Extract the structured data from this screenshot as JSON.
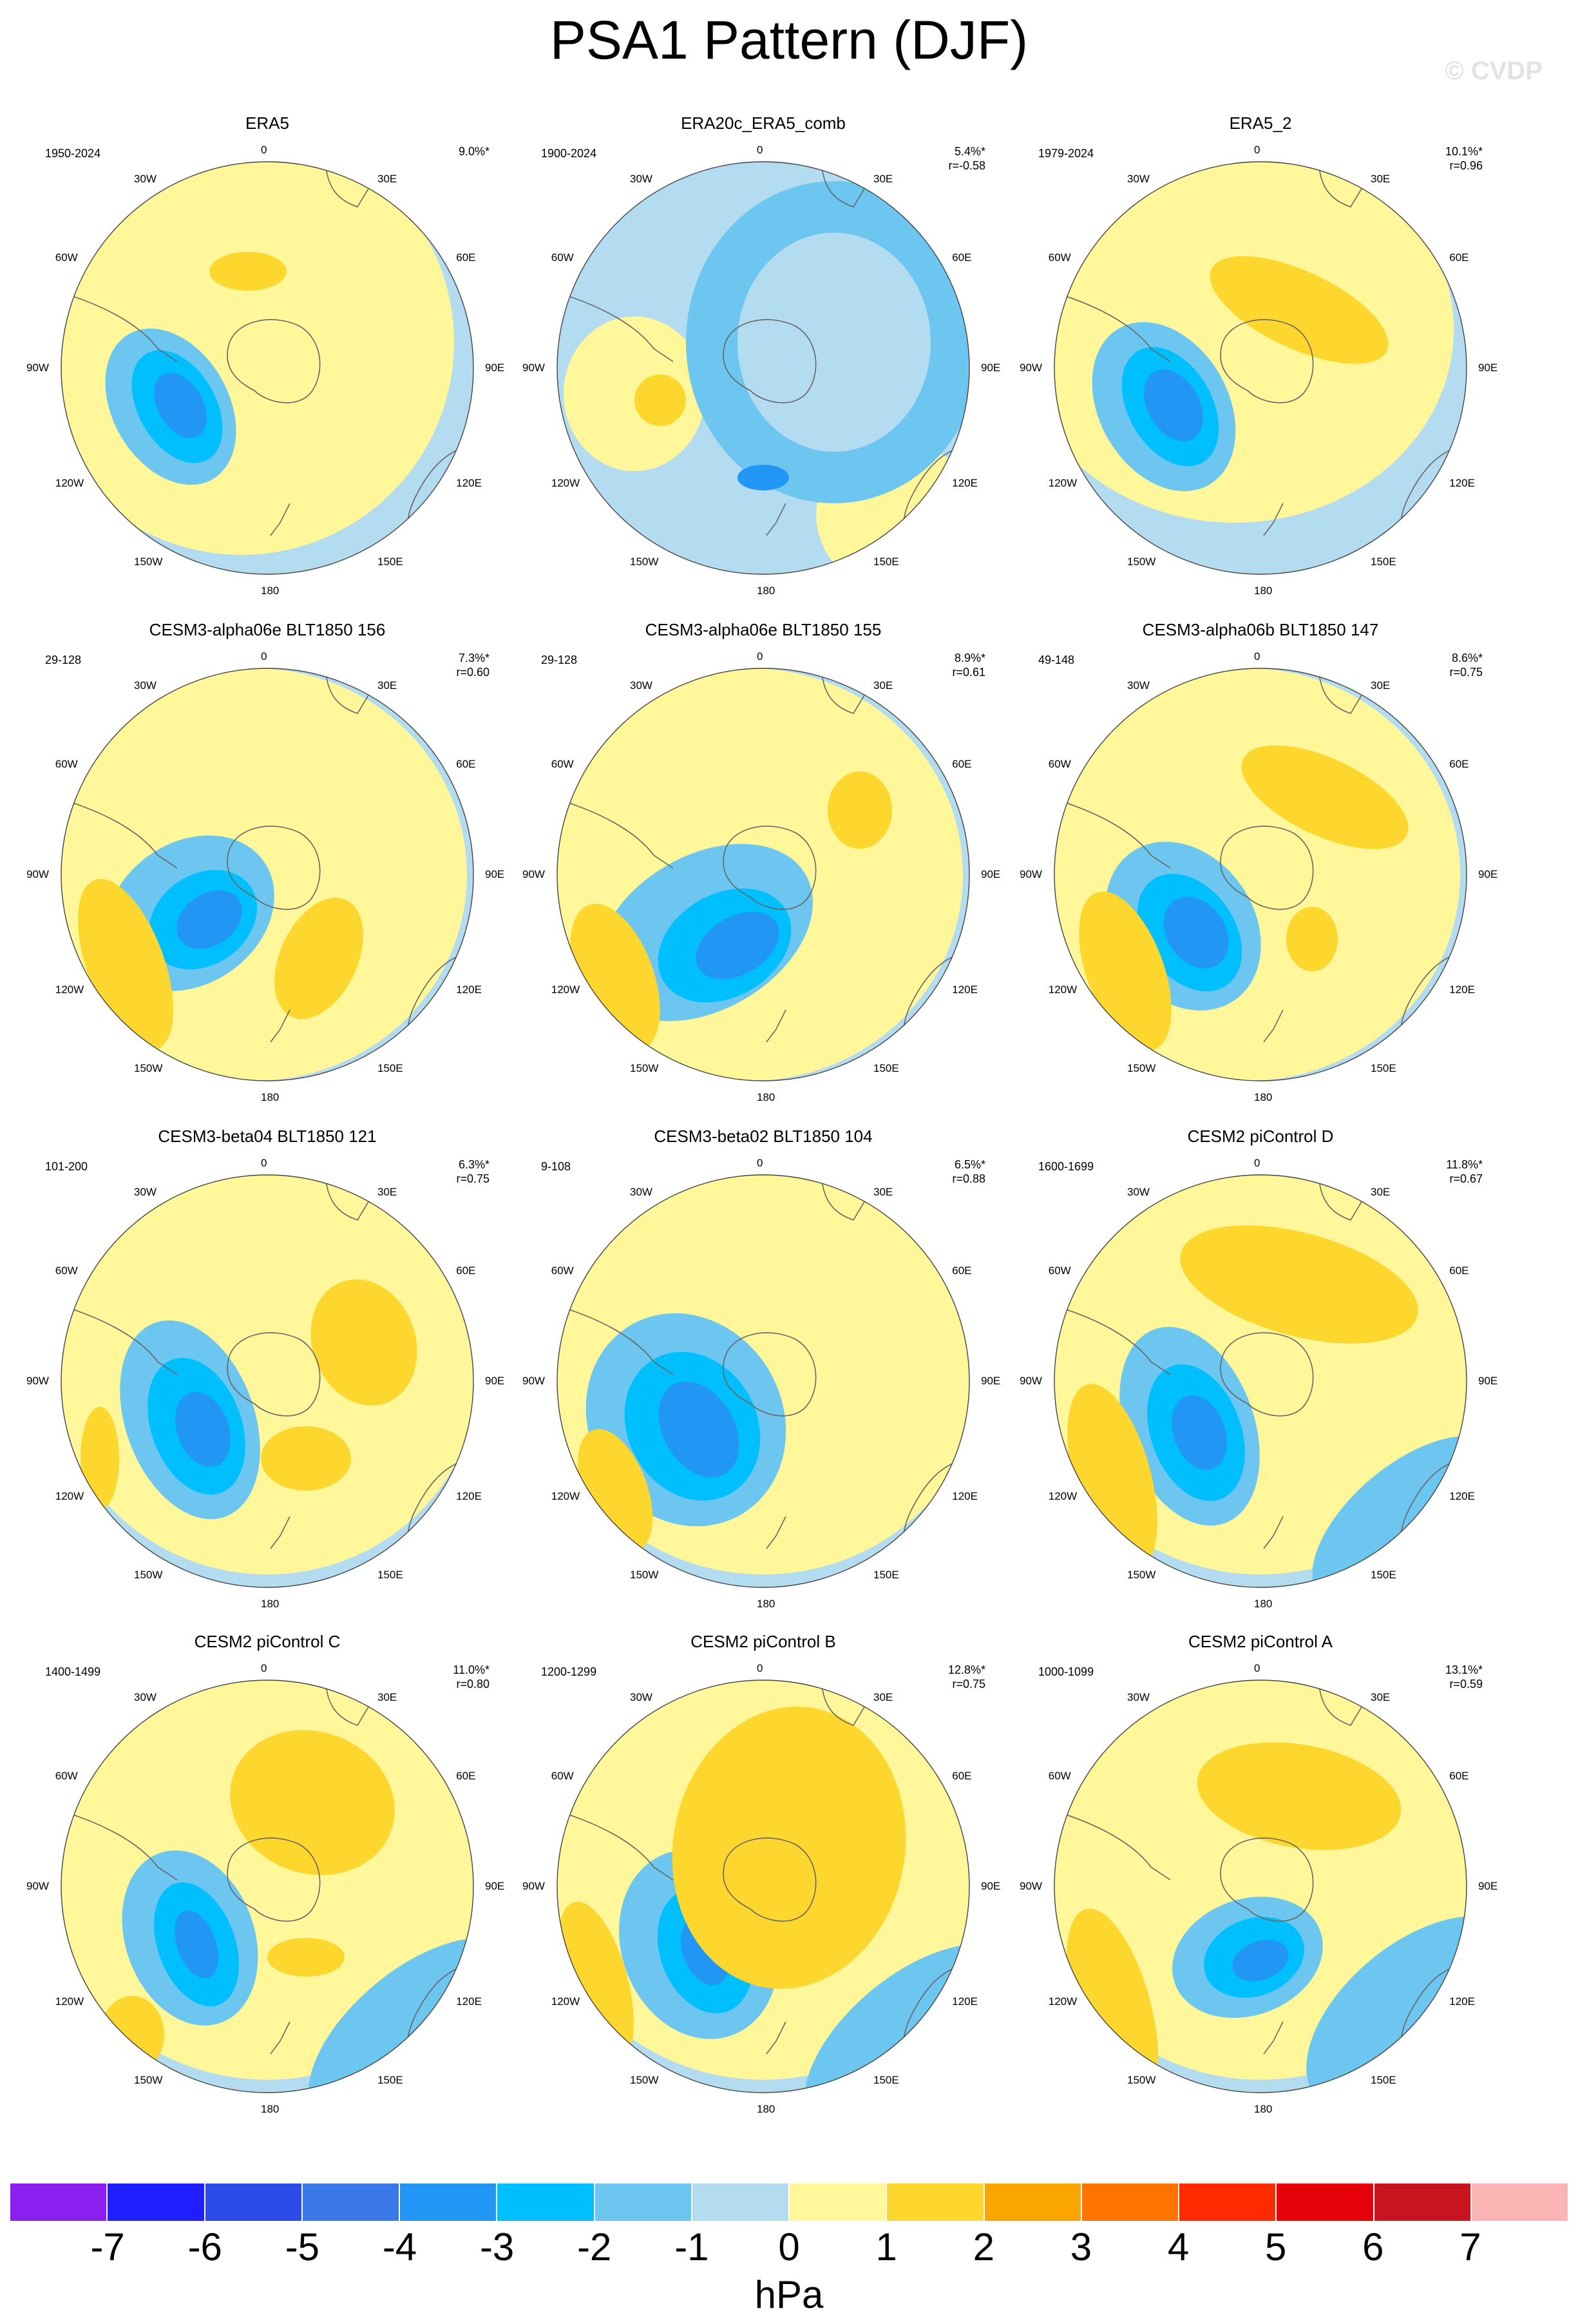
{
  "title": "PSA1 Pattern (DJF)",
  "watermark": "© CVDP",
  "units": "hPa",
  "colorbar": {
    "labels": [
      "-7",
      "-6",
      "-5",
      "-4",
      "-3",
      "-2",
      "-1",
      "0",
      "1",
      "2",
      "3",
      "4",
      "5",
      "6",
      "7"
    ],
    "colors": [
      "#8b1ef0",
      "#1e1eff",
      "#2b4ce6",
      "#3a78e8",
      "#2196f5",
      "#00bfff",
      "#6cc6f0",
      "#b4dcf0",
      "#fff799",
      "#fdd62e",
      "#fba500",
      "#ff7400",
      "#ff2a00",
      "#e6000a",
      "#c8141e",
      "#fbb4b4"
    ]
  },
  "lon_labels": [
    "0",
    "30E",
    "60E",
    "90E",
    "120E",
    "150E",
    "180",
    "150W",
    "120W",
    "90W",
    "60W",
    "30W"
  ],
  "panels": [
    {
      "title": "ERA5",
      "years": "1950-2024",
      "pct": "9.0%*",
      "r": ""
    },
    {
      "title": "ERA20c_ERA5_comb",
      "years": "1900-2024",
      "pct": "5.4%*",
      "r": "r=-0.58"
    },
    {
      "title": "ERA5_2",
      "years": "1979-2024",
      "pct": "10.1%*",
      "r": "r=0.96"
    },
    {
      "title": "CESM3-alpha06e BLT1850 156",
      "years": "29-128",
      "pct": "7.3%*",
      "r": "r=0.60"
    },
    {
      "title": "CESM3-alpha06e BLT1850 155",
      "years": "29-128",
      "pct": "8.9%*",
      "r": "r=0.61"
    },
    {
      "title": "CESM3-alpha06b BLT1850 147",
      "years": "49-148",
      "pct": "8.6%*",
      "r": "r=0.75"
    },
    {
      "title": "CESM3-beta04 BLT1850 121",
      "years": "101-200",
      "pct": "6.3%*",
      "r": "r=0.75"
    },
    {
      "title": "CESM3-beta02 BLT1850 104",
      "years": "9-108",
      "pct": "6.5%*",
      "r": "r=0.88"
    },
    {
      "title": "CESM2 piControl D",
      "years": "1600-1699",
      "pct": "11.8%*",
      "r": "r=0.67"
    },
    {
      "title": "CESM2 piControl C",
      "years": "1400-1499",
      "pct": "11.0%*",
      "r": "r=0.80"
    },
    {
      "title": "CESM2 piControl B",
      "years": "1200-1299",
      "pct": "12.8%*",
      "r": "r=0.75"
    },
    {
      "title": "CESM2 piControl A",
      "years": "1000-1099",
      "pct": "13.1%*",
      "r": "r=0.59"
    }
  ]
}
